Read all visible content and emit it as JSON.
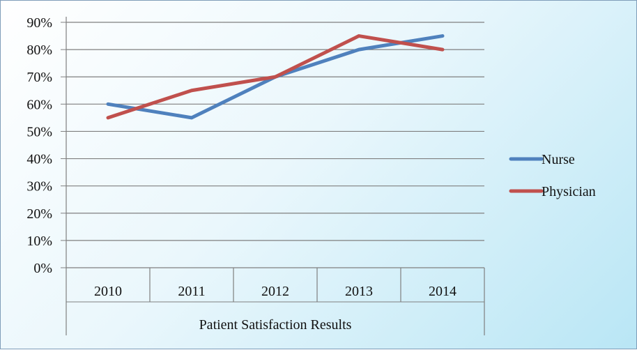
{
  "chart_data": {
    "type": "line",
    "title": "",
    "xlabel": "Patient Satisfaction Results",
    "ylabel": "",
    "categories": [
      "2010",
      "2011",
      "2012",
      "2013",
      "2014"
    ],
    "ylim": [
      0,
      90
    ],
    "yticks": [
      0,
      10,
      20,
      30,
      40,
      50,
      60,
      70,
      80,
      90
    ],
    "ytick_labels": [
      "0%",
      "10%",
      "20%",
      "30%",
      "40%",
      "50%",
      "60%",
      "70%",
      "80%",
      "90%"
    ],
    "grid": true,
    "legend_position": "right",
    "series": [
      {
        "name": "Nurse",
        "color": "#4f81bd",
        "values": [
          60,
          55,
          70,
          80,
          85
        ]
      },
      {
        "name": "Physician",
        "color": "#c0504d",
        "values": [
          55,
          65,
          70,
          85,
          80
        ]
      }
    ]
  }
}
